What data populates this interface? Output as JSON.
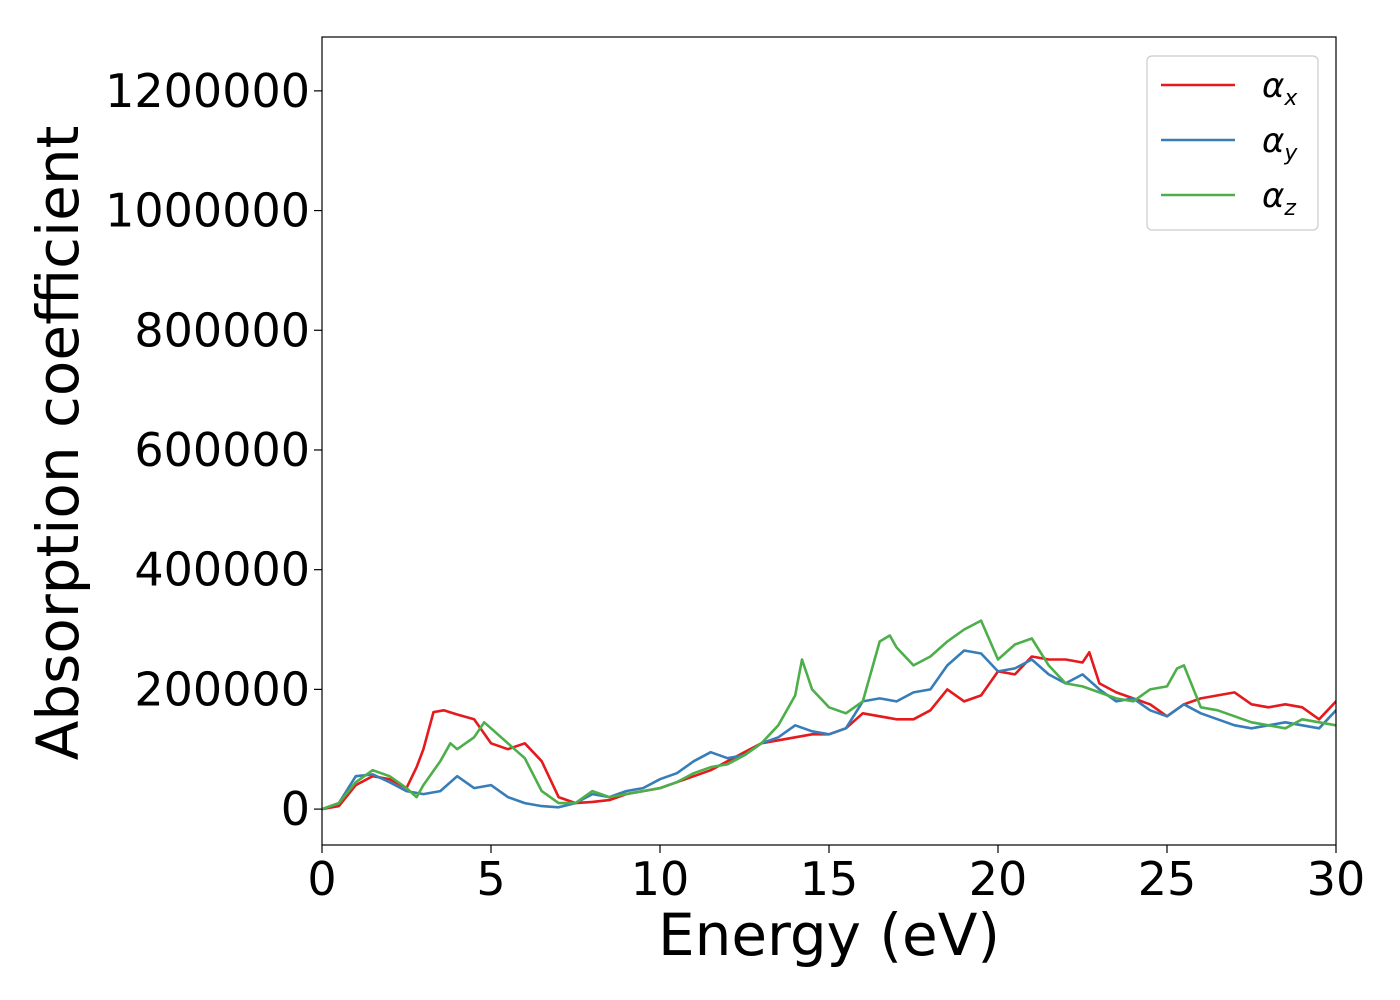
{
  "chart_data": {
    "type": "line",
    "title": "",
    "xlabel": "Energy (eV)",
    "ylabel": "Absorption coefficient",
    "xlim": [
      0,
      30
    ],
    "ylim": [
      -60000,
      1290000
    ],
    "xticks": [
      0,
      5,
      10,
      15,
      20,
      25,
      30
    ],
    "yticks": [
      0,
      200000,
      400000,
      600000,
      800000,
      1000000,
      1200000
    ],
    "grid": false,
    "legend_position": "top-right",
    "series": [
      {
        "name": "αx",
        "symbol": "α",
        "subscript": "x",
        "color": "#e41a1c",
        "x": [
          0,
          0.5,
          1,
          1.5,
          2,
          2.5,
          2.8,
          3,
          3.3,
          3.6,
          4,
          4.5,
          5,
          5.5,
          6,
          6.5,
          7,
          7.5,
          8,
          8.5,
          9,
          9.5,
          10,
          10.5,
          11,
          11.5,
          12,
          12.5,
          13,
          13.5,
          14,
          14.5,
          15,
          15.5,
          16,
          16.5,
          17,
          17.5,
          18,
          18.5,
          19,
          19.5,
          20,
          20.5,
          21,
          21.5,
          22,
          22.5,
          22.7,
          23,
          23.5,
          24,
          24.5,
          25,
          25.5,
          26,
          26.5,
          27,
          27.5,
          28,
          28.5,
          29,
          29.5,
          30
        ],
        "y": [
          0,
          5000,
          40000,
          55000,
          50000,
          35000,
          70000,
          100000,
          162000,
          165000,
          158000,
          150000,
          110000,
          100000,
          110000,
          80000,
          20000,
          10000,
          12000,
          15000,
          25000,
          30000,
          35000,
          45000,
          55000,
          65000,
          80000,
          95000,
          110000,
          115000,
          120000,
          125000,
          125000,
          135000,
          160000,
          155000,
          150000,
          150000,
          165000,
          200000,
          180000,
          190000,
          230000,
          225000,
          255000,
          250000,
          250000,
          245000,
          262000,
          210000,
          195000,
          185000,
          175000,
          155000,
          175000,
          185000,
          190000,
          195000,
          175000,
          170000,
          175000,
          170000,
          150000,
          180000
        ]
      },
      {
        "name": "αy",
        "symbol": "α",
        "subscript": "y",
        "color": "#377eb8",
        "x": [
          0,
          0.5,
          1,
          1.5,
          2,
          2.5,
          3,
          3.5,
          4,
          4.5,
          5,
          5.5,
          6,
          6.5,
          7,
          7.5,
          8,
          8.5,
          9,
          9.5,
          10,
          10.5,
          11,
          11.5,
          12,
          12.5,
          13,
          13.5,
          14,
          14.5,
          15,
          15.5,
          16,
          16.5,
          17,
          17.5,
          18,
          18.5,
          19,
          19.5,
          20,
          20.5,
          21,
          21.5,
          22,
          22.5,
          23,
          23.5,
          24,
          24.5,
          25,
          25.5,
          26,
          26.5,
          27,
          27.5,
          28,
          28.5,
          29,
          29.5,
          30
        ],
        "y": [
          0,
          10000,
          55000,
          58000,
          45000,
          30000,
          25000,
          30000,
          55000,
          35000,
          40000,
          20000,
          10000,
          5000,
          3000,
          10000,
          25000,
          20000,
          30000,
          35000,
          50000,
          60000,
          80000,
          95000,
          85000,
          90000,
          110000,
          120000,
          140000,
          130000,
          125000,
          135000,
          180000,
          185000,
          180000,
          195000,
          200000,
          240000,
          265000,
          260000,
          230000,
          235000,
          250000,
          225000,
          210000,
          225000,
          200000,
          180000,
          185000,
          165000,
          155000,
          175000,
          160000,
          150000,
          140000,
          135000,
          140000,
          145000,
          140000,
          135000,
          165000
        ]
      },
      {
        "name": "αz",
        "symbol": "α",
        "subscript": "z",
        "color": "#4daf4a",
        "x": [
          0,
          0.5,
          1,
          1.5,
          2,
          2.5,
          2.8,
          3,
          3.5,
          3.8,
          4,
          4.5,
          4.8,
          5,
          5.5,
          6,
          6.5,
          7,
          7.5,
          8,
          8.5,
          9,
          9.5,
          10,
          10.5,
          11,
          11.5,
          12,
          12.5,
          13,
          13.5,
          14,
          14.2,
          14.5,
          15,
          15.5,
          16,
          16.5,
          16.8,
          17,
          17.5,
          18,
          18.5,
          19,
          19.5,
          20,
          20.5,
          21,
          21.5,
          22,
          22.5,
          23,
          23.5,
          24,
          24.5,
          25,
          25.3,
          25.5,
          26,
          26.5,
          27,
          27.5,
          28,
          28.5,
          29,
          29.5,
          30
        ],
        "y": [
          0,
          10000,
          45000,
          65000,
          55000,
          35000,
          20000,
          40000,
          80000,
          110000,
          100000,
          120000,
          145000,
          135000,
          110000,
          85000,
          30000,
          10000,
          10000,
          30000,
          20000,
          25000,
          30000,
          35000,
          45000,
          60000,
          70000,
          75000,
          90000,
          110000,
          140000,
          190000,
          250000,
          200000,
          170000,
          160000,
          180000,
          280000,
          290000,
          270000,
          240000,
          255000,
          280000,
          300000,
          315000,
          250000,
          275000,
          285000,
          240000,
          210000,
          205000,
          195000,
          185000,
          180000,
          200000,
          205000,
          235000,
          240000,
          170000,
          165000,
          155000,
          145000,
          140000,
          135000,
          150000,
          145000,
          140000
        ]
      }
    ]
  },
  "legend_colors": {
    "frame": "#cccccc"
  }
}
